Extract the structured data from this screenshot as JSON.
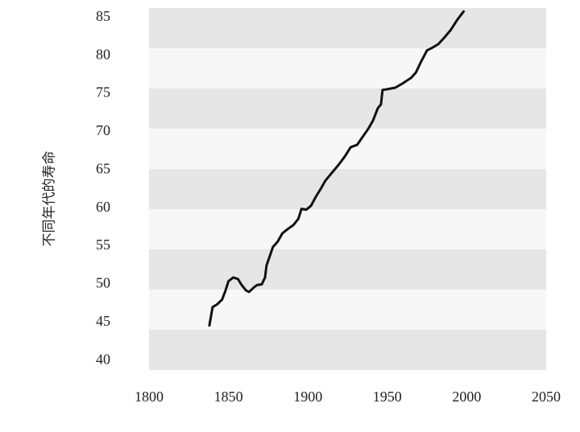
{
  "chart_data": {
    "type": "line",
    "ylabel": "不同年代的寿命",
    "xlim": [
      1800,
      2050
    ],
    "ylim": [
      38.75,
      86.25
    ],
    "x_ticks": [
      1800,
      1850,
      1900,
      1950,
      2000,
      2050
    ],
    "y_ticks": [
      85,
      80,
      75,
      70,
      65,
      60,
      55,
      50,
      45,
      40
    ],
    "grid": true,
    "legend": "none",
    "series": [
      {
        "x": [
          1838,
          1840,
          1843,
          1846,
          1848,
          1850,
          1853,
          1856,
          1858,
          1861,
          1863,
          1866,
          1868,
          1871,
          1873,
          1874,
          1876,
          1878,
          1881,
          1884,
          1887,
          1891,
          1894,
          1896,
          1899,
          1902,
          1905,
          1908,
          1911,
          1915,
          1919,
          1923,
          1927,
          1931,
          1934,
          1938,
          1941,
          1944,
          1946,
          1947,
          1950,
          1955,
          1960,
          1965,
          1968,
          1971,
          1975,
          1978,
          1982,
          1986,
          1990,
          1994,
          1998
        ],
        "y": [
          44.6,
          47.0,
          47.4,
          48.0,
          49.1,
          50.4,
          50.9,
          50.7,
          50.0,
          49.2,
          49.0,
          49.6,
          49.9,
          50.0,
          50.9,
          52.5,
          53.7,
          54.9,
          55.6,
          56.7,
          57.2,
          57.8,
          58.6,
          59.9,
          59.8,
          60.3,
          61.5,
          62.5,
          63.6,
          64.6,
          65.6,
          66.7,
          68.0,
          68.3,
          69.2,
          70.4,
          71.5,
          73.1,
          73.6,
          75.5,
          75.6,
          75.8,
          76.4,
          77.1,
          77.8,
          79.1,
          80.7,
          81.0,
          81.5,
          82.4,
          83.4,
          84.7,
          85.8
        ]
      }
    ]
  },
  "colors": {
    "band_dark": "#e6e6e6",
    "band_light": "#f7f7f7",
    "line": "#111111"
  }
}
